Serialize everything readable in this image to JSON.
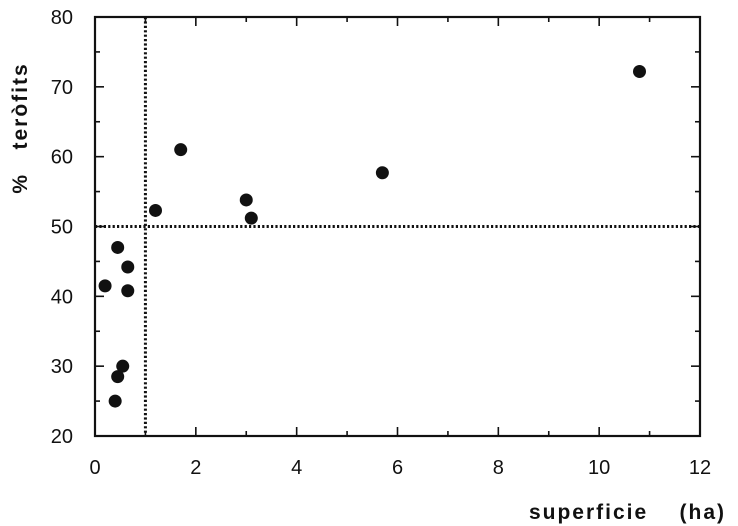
{
  "chart_data": {
    "type": "scatter",
    "title": "",
    "xlabel": "superficie    (ha)",
    "ylabel": "%   teròfits",
    "xlim": [
      0,
      12
    ],
    "ylim": [
      20,
      80
    ],
    "x_ticks": [
      "0",
      "2",
      "4",
      "6",
      "8",
      "10",
      "12"
    ],
    "y_ticks": [
      "20",
      "30",
      "40",
      "50",
      "60",
      "70",
      "80"
    ],
    "grid": false,
    "reference_lines": [
      {
        "orientation": "vertical",
        "x": 1,
        "style": "dotted"
      },
      {
        "orientation": "horizontal",
        "y": 50,
        "style": "dotted"
      }
    ],
    "series": [
      {
        "points": [
          {
            "x": 0.2,
            "y": 41.5
          },
          {
            "x": 0.4,
            "y": 25
          },
          {
            "x": 0.45,
            "y": 47
          },
          {
            "x": 0.45,
            "y": 28.5
          },
          {
            "x": 0.55,
            "y": 30
          },
          {
            "x": 0.65,
            "y": 44.2
          },
          {
            "x": 0.65,
            "y": 40.8
          },
          {
            "x": 1.2,
            "y": 52.3
          },
          {
            "x": 1.7,
            "y": 61
          },
          {
            "x": 3.0,
            "y": 53.8
          },
          {
            "x": 3.1,
            "y": 51.2
          },
          {
            "x": 5.7,
            "y": 57.7
          },
          {
            "x": 10.8,
            "y": 72.2
          }
        ]
      }
    ],
    "colors": {
      "ink": "#111111",
      "background": "#ffffff"
    }
  }
}
